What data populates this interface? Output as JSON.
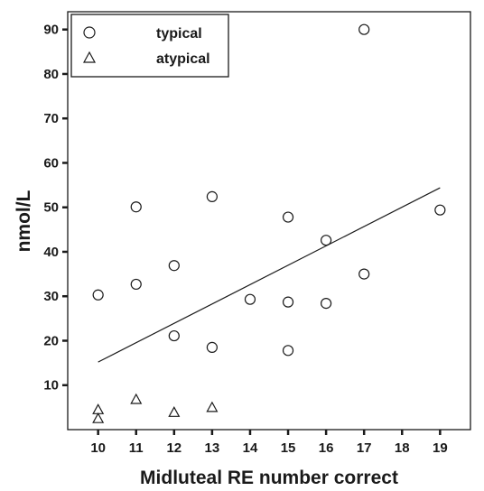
{
  "chart_data": {
    "type": "scatter",
    "xlabel": "Midluteal RE number correct",
    "ylabel": "nmol/L",
    "xlim": [
      9.2,
      19.8
    ],
    "ylim": [
      0,
      94
    ],
    "x_ticks": [
      10,
      11,
      12,
      13,
      14,
      15,
      16,
      17,
      18,
      19
    ],
    "y_ticks": [
      10,
      20,
      30,
      40,
      50,
      60,
      70,
      80,
      90
    ],
    "grid": false,
    "legend_position": "top-left",
    "series": [
      {
        "name": "typical",
        "marker": "circle",
        "points": [
          {
            "x": 10,
            "y": 30.3
          },
          {
            "x": 11,
            "y": 50.1
          },
          {
            "x": 11,
            "y": 32.7
          },
          {
            "x": 12,
            "y": 36.9
          },
          {
            "x": 12,
            "y": 21.1
          },
          {
            "x": 13,
            "y": 52.4
          },
          {
            "x": 13,
            "y": 18.5
          },
          {
            "x": 14,
            "y": 29.3
          },
          {
            "x": 15,
            "y": 47.8
          },
          {
            "x": 15,
            "y": 28.7
          },
          {
            "x": 15,
            "y": 17.8
          },
          {
            "x": 16,
            "y": 42.6
          },
          {
            "x": 16,
            "y": 28.4
          },
          {
            "x": 17,
            "y": 90.0
          },
          {
            "x": 17,
            "y": 35.0
          },
          {
            "x": 19,
            "y": 49.4
          }
        ]
      },
      {
        "name": "atypical",
        "marker": "triangle",
        "points": [
          {
            "x": 10,
            "y": 4.5
          },
          {
            "x": 10,
            "y": 2.5
          },
          {
            "x": 11,
            "y": 6.8
          },
          {
            "x": 12,
            "y": 3.9
          },
          {
            "x": 13,
            "y": 5.0
          }
        ]
      }
    ],
    "fit_line": {
      "x": [
        10,
        19
      ],
      "y": [
        15.2,
        54.4
      ]
    }
  }
}
